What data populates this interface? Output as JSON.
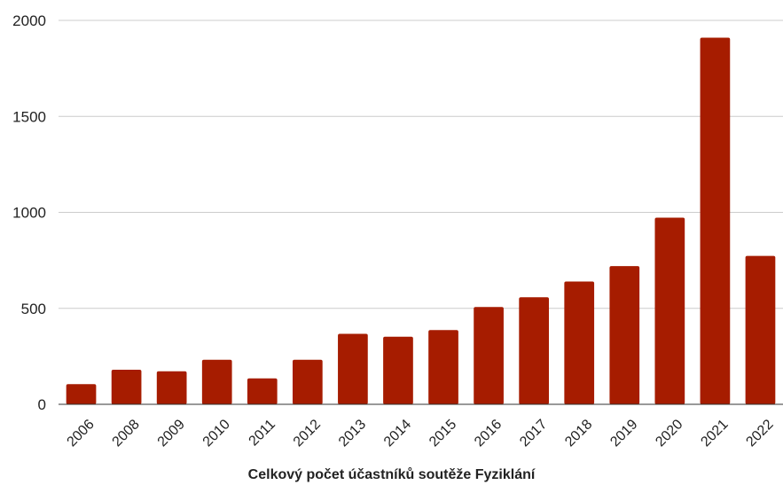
{
  "chart_data": {
    "type": "bar",
    "title": "Celkový počet účastníků soutěže Fyziklání",
    "xlabel": "",
    "ylabel": "",
    "categories": [
      "2006",
      "2008",
      "2009",
      "2010",
      "2011",
      "2012",
      "2013",
      "2014",
      "2015",
      "2016",
      "2017",
      "2018",
      "2019",
      "2020",
      "2021",
      "2022"
    ],
    "values": [
      105,
      180,
      172,
      232,
      135,
      232,
      367,
      352,
      387,
      507,
      558,
      640,
      720,
      972,
      1910,
      773
    ],
    "ylim": [
      0,
      2000
    ],
    "yticks": [
      "0",
      "500",
      "1000",
      "1500",
      "2000"
    ],
    "grid": true,
    "legend": "none",
    "bar_color": "#a61c00"
  }
}
